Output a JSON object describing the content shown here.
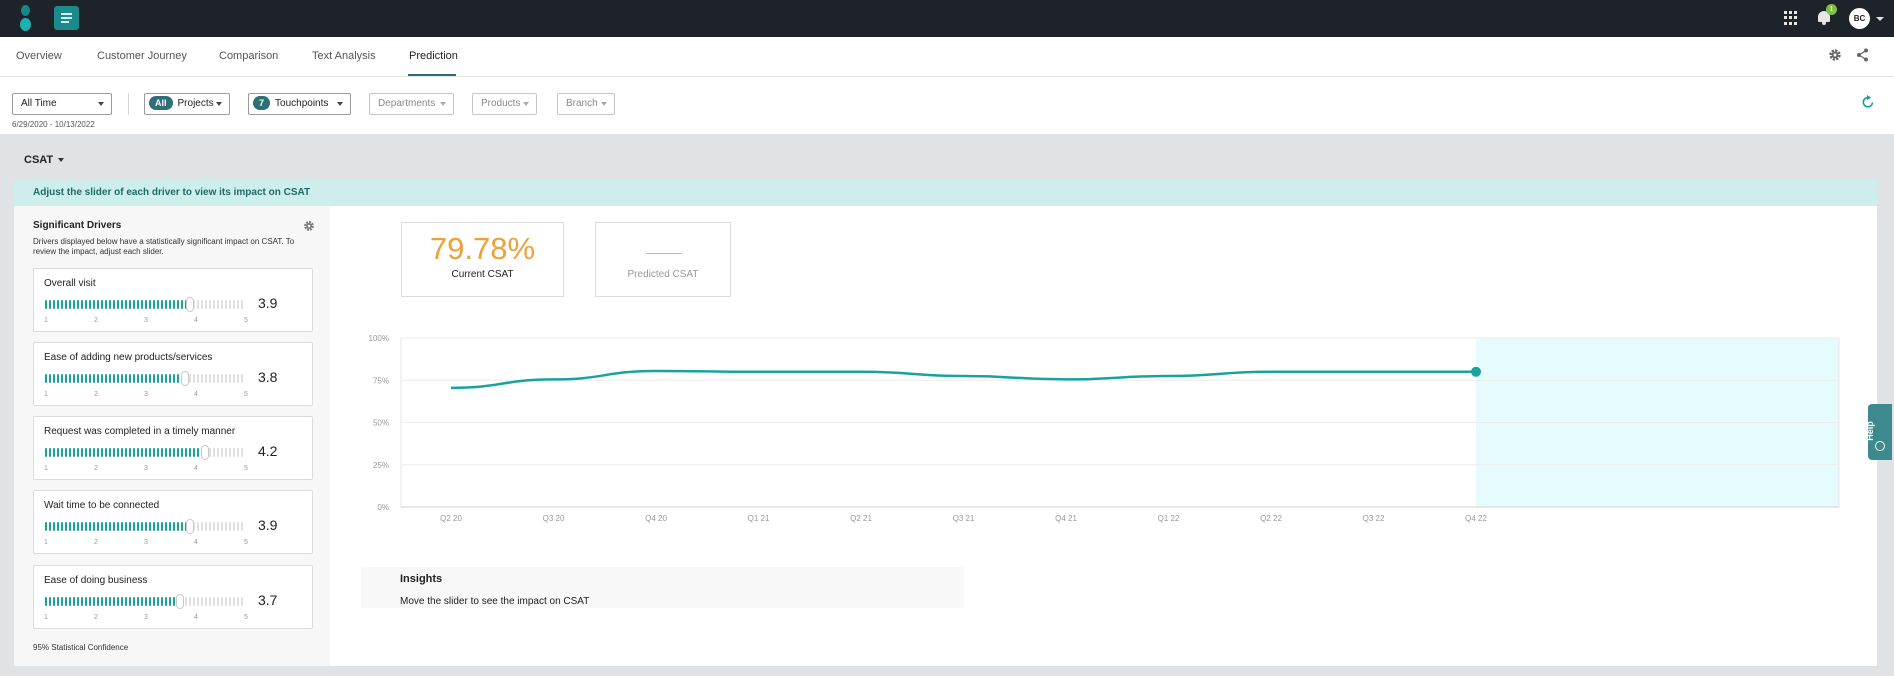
{
  "topbar": {
    "notification_count": "1",
    "avatar_initials": "BC",
    "logo_icon": "app-logo-icon",
    "apps_icon": "grid-icon",
    "bell_icon": "bell-icon"
  },
  "tabs": [
    {
      "label": "Overview"
    },
    {
      "label": "Customer Journey"
    },
    {
      "label": "Comparison"
    },
    {
      "label": "Text Analysis"
    },
    {
      "label": "Prediction",
      "active": true
    }
  ],
  "filters": {
    "time": "All Time",
    "projects_pill": "All",
    "projects": "Projects",
    "touchpoints_pill": "7",
    "touchpoints": "Touchpoints",
    "departments": "Departments",
    "products": "Products",
    "branch": "Branch",
    "date_range": "6/29/2020 - 10/13/2022"
  },
  "metric_select": "CSAT",
  "banner": "Adjust the slider of each driver to view its impact on CSAT",
  "drivers": {
    "title": "Significant Drivers",
    "description": "Drivers displayed below have a statistically significant impact on CSAT. To review the impact, adjust each slider.",
    "scale": [
      "1",
      "2",
      "3",
      "4",
      "5"
    ],
    "items": [
      {
        "name": "Overall visit",
        "value": "3.9",
        "level": 3.9
      },
      {
        "name": "Ease of adding new products/services",
        "value": "3.8",
        "level": 3.8
      },
      {
        "name": "Request was completed in a timely manner",
        "value": "4.2",
        "level": 4.2
      },
      {
        "name": "Wait time to be connected",
        "value": "3.9",
        "level": 3.9
      },
      {
        "name": "Ease of doing business",
        "value": "3.7",
        "level": 3.7
      }
    ],
    "confidence": "95% Statistical Confidence"
  },
  "kpi": {
    "current_value": "79.78%",
    "current_label": "Current CSAT",
    "predicted_label": "Predicted CSAT"
  },
  "colors": {
    "accent": "#1aa39c",
    "kpi_value": "#f0a03a",
    "slider_fill": "#19a39a",
    "forecast_bg": "#e6fbfb"
  },
  "chart_data": {
    "type": "line",
    "x": [
      "Q2 20",
      "Q3 20",
      "Q4 20",
      "Q1 21",
      "Q2 21",
      "Q3 21",
      "Q4 21",
      "Q1 22",
      "Q2 22",
      "Q3 22",
      "Q4 22"
    ],
    "series": [
      {
        "values": [
          70.5,
          75.5,
          80.5,
          80,
          80,
          77.5,
          75.5,
          77.5,
          80,
          80,
          80
        ]
      }
    ],
    "yticks": [
      "0%",
      "25%",
      "50%",
      "75%",
      "100%"
    ],
    "ylim": [
      0,
      100
    ],
    "grid": true,
    "forecast_region_after": "Q4 22"
  },
  "insights": {
    "title": "Insights",
    "text": "Move the slider to see the impact on CSAT"
  },
  "help_label": "Help"
}
